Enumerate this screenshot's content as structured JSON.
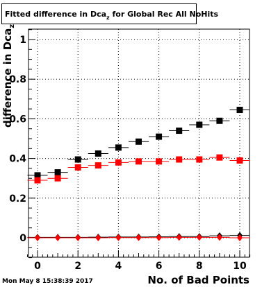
{
  "header": {
    "title_main": "Fitted difference in Dca",
    "title_sub": "z",
    "title_rest": " for Global Rec All NoHits"
  },
  "footer": {
    "timestamp": "Mon May  8 15:38:39 2017"
  },
  "chart_data": {
    "type": "scatter",
    "xlabel": "No. of Bad Points",
    "ylabel_main": "difference in Dca",
    "ylabel_sub": "z",
    "xlim": [
      -0.5,
      10.5
    ],
    "ylim": [
      -0.1,
      1.05
    ],
    "xticks": [
      0,
      2,
      4,
      6,
      8,
      10
    ],
    "yticks": [
      0,
      0.2,
      0.4,
      0.6,
      0.8,
      1
    ],
    "ytick_labels": [
      "0",
      "0.2",
      "0.4",
      "0.6",
      "0.8",
      "1"
    ],
    "grid": true,
    "x": [
      0,
      1,
      2,
      3,
      4,
      5,
      6,
      7,
      8,
      9,
      10
    ],
    "series": [
      {
        "color": "#000000",
        "marker": "square",
        "values": [
          0.315,
          0.33,
          0.395,
          0.425,
          0.455,
          0.485,
          0.51,
          0.54,
          0.57,
          0.59,
          0.645
        ]
      },
      {
        "color": "#ff0000",
        "marker": "square",
        "values": [
          0.29,
          0.3,
          0.355,
          0.365,
          0.38,
          0.385,
          0.385,
          0.395,
          0.395,
          0.405,
          0.39
        ]
      },
      {
        "color": "#000000",
        "marker": "diamond",
        "values": [
          0.002,
          0.002,
          0.002,
          0.003,
          0.004,
          0.004,
          0.005,
          0.006,
          0.006,
          0.01,
          0.012
        ]
      },
      {
        "color": "#ff0000",
        "marker": "diamond",
        "values": [
          0.0,
          0.0,
          0.0,
          0.0,
          0.001,
          0.001,
          0.001,
          0.002,
          0.002,
          0.002,
          0.0
        ]
      }
    ]
  }
}
